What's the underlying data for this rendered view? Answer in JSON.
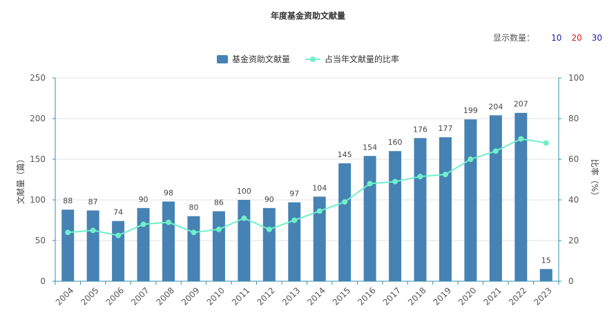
{
  "title": "年度基金资助文献量",
  "count_selector": {
    "label": "显示数量：",
    "options": [
      {
        "text": "10",
        "color": "#1a1aa6"
      },
      {
        "text": "20",
        "color": "#d11a1a"
      },
      {
        "text": "30",
        "color": "#1a1aa6"
      }
    ]
  },
  "colors": {
    "bar": "#4682b4",
    "line": "#6ff0c8",
    "axis_left": "#2f8fb0",
    "axis_right": "#2f8fb0",
    "grid": "#e2e2e2"
  },
  "chart_data": {
    "type": "bar",
    "title": "年度基金资助文献量",
    "categories": [
      "2004",
      "2005",
      "2006",
      "2007",
      "2008",
      "2009",
      "2010",
      "2011",
      "2012",
      "2013",
      "2014",
      "2015",
      "2016",
      "2017",
      "2018",
      "2019",
      "2020",
      "2021",
      "2022",
      "2023"
    ],
    "series": [
      {
        "name": "基金资助文献量",
        "type": "bar",
        "axis": "left",
        "values": [
          88,
          87,
          74,
          90,
          98,
          80,
          86,
          100,
          90,
          97,
          104,
          145,
          154,
          160,
          176,
          177,
          199,
          204,
          207,
          15
        ]
      },
      {
        "name": "占当年文献量的比率",
        "type": "line",
        "axis": "right",
        "values": [
          24,
          25,
          22.5,
          28,
          29,
          24,
          25.5,
          31,
          25.5,
          30,
          34.5,
          39,
          48,
          49,
          51.5,
          52.5,
          60,
          64,
          70,
          68
        ]
      }
    ],
    "ylabel_left": "文献量（篇）",
    "ylabel_right": "比率（%）",
    "ylim_left": [
      0,
      250
    ],
    "yticks_left": [
      "0",
      "50",
      "100",
      "150",
      "200",
      "250"
    ],
    "ylim_right": [
      0,
      100
    ],
    "yticks_right": [
      "0",
      "20",
      "40",
      "60",
      "80",
      "100"
    ],
    "legend": "top-center",
    "grid": true
  }
}
